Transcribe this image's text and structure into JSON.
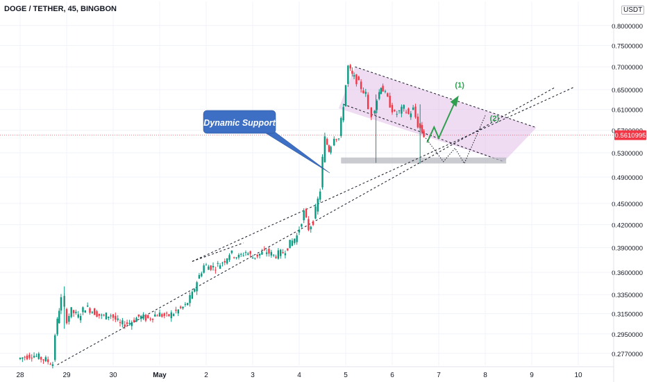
{
  "title": "DOGE / TETHER, 45, BINGBON",
  "quote_currency": "USDT",
  "annotations": {
    "callout": "Dynamic Support",
    "wave1": "(1)",
    "wave2": "(2)"
  },
  "colors": {
    "up": "#089981",
    "down": "#f23645",
    "channel_fill": "#e1bee7",
    "callout_fill": "#3d6fc4",
    "projection": "#2e9e4f",
    "price_marker": "#f23645"
  },
  "chart_data": {
    "type": "candlestick",
    "y_scale": "log",
    "ylim": [
      0.2665,
      0.865
    ],
    "x_tick_labels": [
      "28",
      "29",
      "30",
      "May",
      "2",
      "3",
      "4",
      "5",
      "6",
      "7",
      "8",
      "9",
      "10"
    ],
    "y_tick_labels": [
      "0.8000000",
      "0.7500000",
      "0.7000000",
      "0.6500000",
      "0.6100000",
      "0.5700000",
      "0.5300000",
      "0.4900000",
      "0.4500000",
      "0.4200000",
      "0.3900000",
      "0.3600000",
      "0.3350000",
      "0.3150000",
      "0.2950000",
      "0.2770000"
    ],
    "last_price": 0.5610995,
    "last_price_label": "0.5610995",
    "price_series": [
      [
        27.0,
        0.272
      ],
      [
        27.3,
        0.276
      ],
      [
        27.6,
        0.271
      ],
      [
        27.75,
        0.268
      ],
      [
        27.8,
        0.295
      ],
      [
        27.88,
        0.32
      ],
      [
        27.95,
        0.33
      ],
      [
        28.05,
        0.309
      ],
      [
        28.15,
        0.318
      ],
      [
        28.3,
        0.312
      ],
      [
        28.45,
        0.322
      ],
      [
        28.6,
        0.318
      ],
      [
        28.8,
        0.312
      ],
      [
        29.0,
        0.314
      ],
      [
        29.2,
        0.304
      ],
      [
        29.4,
        0.306
      ],
      [
        29.6,
        0.312
      ],
      [
        29.8,
        0.31
      ],
      [
        30.0,
        0.315
      ],
      [
        30.2,
        0.312
      ],
      [
        30.4,
        0.317
      ],
      [
        30.6,
        0.323
      ],
      [
        30.75,
        0.335
      ],
      [
        30.85,
        0.35
      ],
      [
        31.0,
        0.368
      ],
      [
        31.2,
        0.366
      ],
      [
        31.35,
        0.37
      ],
      [
        31.45,
        0.375
      ],
      [
        31.55,
        0.383
      ],
      [
        31.65,
        0.381
      ],
      [
        31.75,
        0.378
      ],
      [
        31.9,
        0.385
      ],
      [
        32.05,
        0.378
      ],
      [
        32.2,
        0.382
      ],
      [
        32.35,
        0.385
      ],
      [
        32.5,
        0.38
      ],
      [
        32.7,
        0.384
      ],
      [
        32.85,
        0.395
      ],
      [
        33.0,
        0.405
      ],
      [
        33.15,
        0.437
      ],
      [
        33.25,
        0.415
      ],
      [
        33.35,
        0.425
      ],
      [
        33.4,
        0.44
      ],
      [
        33.5,
        0.47
      ],
      [
        33.55,
        0.52
      ],
      [
        33.6,
        0.555
      ],
      [
        33.68,
        0.535
      ],
      [
        33.75,
        0.545
      ],
      [
        33.8,
        0.56
      ],
      [
        33.9,
        0.555
      ],
      [
        34.0,
        0.62
      ],
      [
        34.05,
        0.66
      ],
      [
        34.1,
        0.7
      ],
      [
        34.18,
        0.68
      ],
      [
        34.28,
        0.67
      ],
      [
        34.38,
        0.655
      ],
      [
        34.48,
        0.64
      ],
      [
        34.55,
        0.61
      ],
      [
        34.62,
        0.6
      ],
      [
        34.72,
        0.63
      ],
      [
        34.8,
        0.66
      ],
      [
        34.9,
        0.64
      ],
      [
        35.0,
        0.62
      ],
      [
        35.1,
        0.6
      ],
      [
        35.2,
        0.605
      ],
      [
        35.3,
        0.612
      ],
      [
        35.4,
        0.6
      ],
      [
        35.5,
        0.61
      ],
      [
        35.6,
        0.58
      ],
      [
        35.72,
        0.5611
      ]
    ],
    "price_marker_value": 0.5611
  }
}
